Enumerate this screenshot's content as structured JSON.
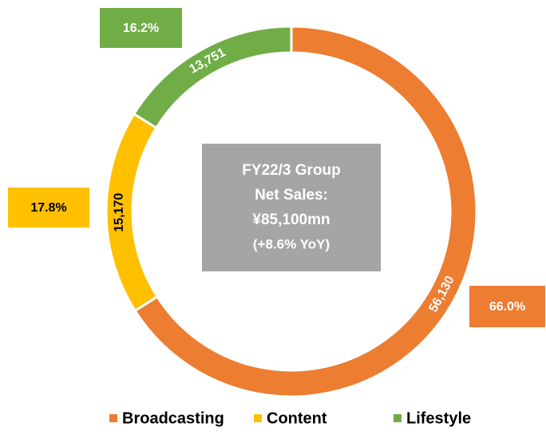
{
  "chart_data": {
    "type": "donut",
    "categories": [
      "Broadcasting",
      "Content",
      "Lifestyle"
    ],
    "series": [
      {
        "name": "FY22/3 Group Net Sales",
        "colors": [
          "#ED7D31",
          "#FFC000",
          "#70AD47"
        ],
        "values": [
          56130,
          15170,
          13751
        ],
        "value_labels": [
          "56,130",
          "15,170",
          "13,751"
        ]
      }
    ],
    "percentages": [
      66.0,
      17.8,
      16.2
    ],
    "percentage_labels": [
      "66.0%",
      "17.8%",
      "16.2%"
    ],
    "center_label": [
      "FY22/3 Group",
      "Net Sales:",
      "¥85,100mn",
      "(+8.6% YoY)"
    ],
    "legend": "bottom"
  }
}
